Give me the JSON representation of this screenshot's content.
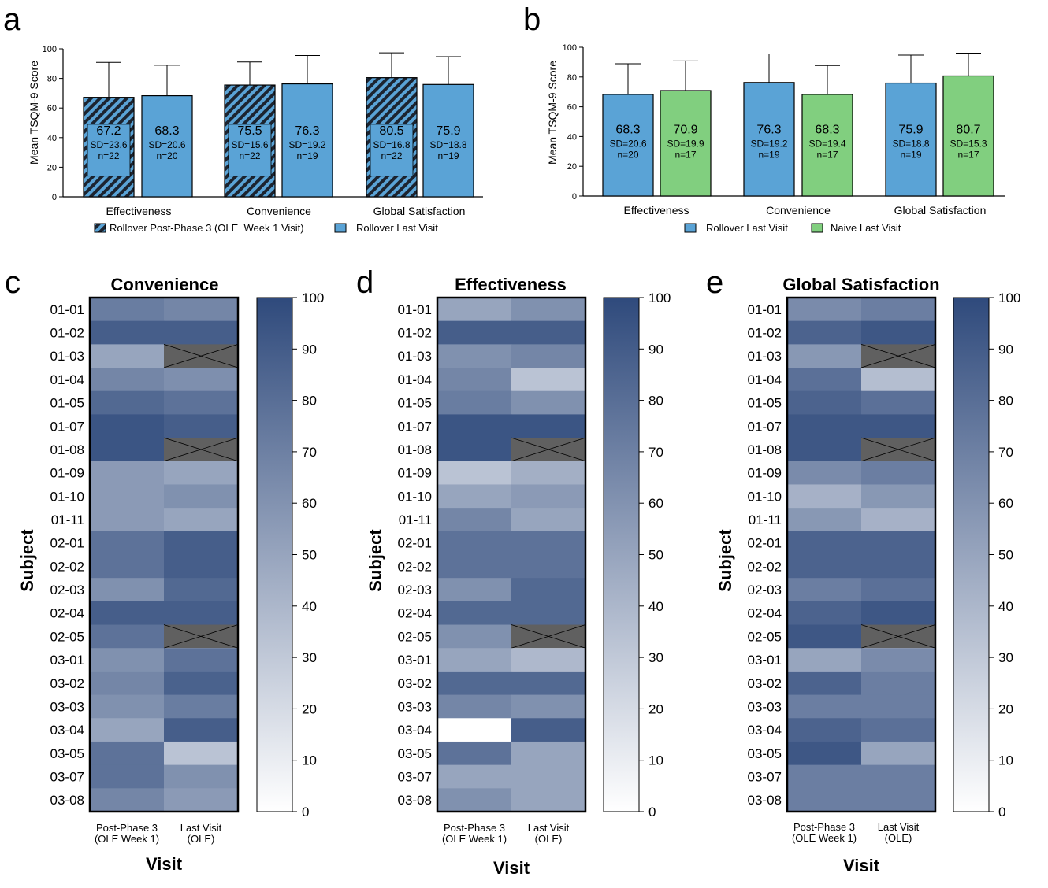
{
  "colors": {
    "rollover_blue": "#5aa3d6",
    "naive_green": "#81cf7f",
    "hatch_dark": "#1c2430",
    "missing_cell": "#606060",
    "scale_high": "#2f4a7c",
    "scale_low": "#ffffff"
  },
  "panel_letters": [
    "a",
    "b",
    "c",
    "d",
    "e"
  ],
  "chart_data": [
    {
      "panel": "a",
      "type": "bar",
      "ylabel": "Mean TSQM-9 Score",
      "ylim": [
        0,
        100
      ],
      "yticks": [
        "0",
        "20",
        "40",
        "60",
        "80",
        "100"
      ],
      "categories": [
        "Effectiveness",
        "Convenience",
        "Global Satisfaction"
      ],
      "series": [
        {
          "name": "Rollover Post-Phase 3 (OLE  Week 1 Visit)",
          "fill": "hatch",
          "values": [
            67.2,
            75.5,
            80.5
          ],
          "sd": [
            23.6,
            15.6,
            16.8
          ],
          "n": [
            22,
            22,
            22
          ],
          "mean_labels": [
            "67.2",
            "75.5",
            "80.5"
          ],
          "sd_labels": [
            "SD=23.6",
            "SD=15.6",
            "SD=16.8"
          ],
          "n_labels": [
            "n=22",
            "n=22",
            "n=22"
          ]
        },
        {
          "name": "Rollover Last Visit",
          "fill": "blue",
          "values": [
            68.3,
            76.3,
            75.9
          ],
          "sd": [
            20.6,
            19.2,
            18.8
          ],
          "n": [
            20,
            19,
            19
          ],
          "mean_labels": [
            "68.3",
            "76.3",
            "75.9"
          ],
          "sd_labels": [
            "SD=20.6",
            "SD=19.2",
            "SD=18.8"
          ],
          "n_labels": [
            "n=20",
            "n=19",
            "n=19"
          ]
        }
      ],
      "legend": "bottom"
    },
    {
      "panel": "b",
      "type": "bar",
      "ylabel": "Mean TSQM-9 Score",
      "ylim": [
        0,
        100
      ],
      "yticks": [
        "0",
        "20",
        "40",
        "60",
        "80",
        "100"
      ],
      "categories": [
        "Effectiveness",
        "Convenience",
        "Global Satisfaction"
      ],
      "series": [
        {
          "name": "Rollover Last Visit",
          "fill": "blue",
          "values": [
            68.3,
            76.3,
            75.9
          ],
          "sd": [
            20.6,
            19.2,
            18.8
          ],
          "n": [
            20,
            19,
            19
          ],
          "mean_labels": [
            "68.3",
            "76.3",
            "75.9"
          ],
          "sd_labels": [
            "SD=20.6",
            "SD=19.2",
            "SD=18.8"
          ],
          "n_labels": [
            "n=20",
            "n=19",
            "n=19"
          ]
        },
        {
          "name": "Naive Last Visit",
          "fill": "green",
          "values": [
            70.9,
            68.3,
            80.7
          ],
          "sd": [
            19.9,
            19.4,
            15.3
          ],
          "n": [
            17,
            17,
            17
          ],
          "mean_labels": [
            "70.9",
            "68.3",
            "80.7"
          ],
          "sd_labels": [
            "SD=19.9",
            "SD=19.4",
            "SD=15.3"
          ],
          "n_labels": [
            "n=17",
            "n=17",
            "n=17"
          ]
        }
      ],
      "legend": "bottom"
    },
    {
      "panel": "c",
      "type": "heatmap",
      "title": "Convenience",
      "ylabel": "Subject",
      "xlabel": "Visit",
      "columns": [
        [
          "Post-Phase 3",
          "(OLE Week 1)"
        ],
        [
          "Last Visit",
          "(OLE)"
        ]
      ],
      "rows": [
        "01-01",
        "01-02",
        "01-03",
        "01-04",
        "01-05",
        "01-07",
        "01-08",
        "01-09",
        "01-10",
        "01-11",
        "02-01",
        "02-02",
        "02-03",
        "02-04",
        "02-05",
        "03-01",
        "03-02",
        "03-03",
        "03-04",
        "03-05",
        "03-07",
        "03-08"
      ],
      "values": [
        [
          72,
          67
        ],
        [
          89,
          89
        ],
        [
          50,
          null
        ],
        [
          67,
          62
        ],
        [
          83,
          78
        ],
        [
          94,
          89
        ],
        [
          94,
          null
        ],
        [
          56,
          50
        ],
        [
          56,
          61
        ],
        [
          56,
          50
        ],
        [
          78,
          89
        ],
        [
          78,
          89
        ],
        [
          61,
          83
        ],
        [
          89,
          89
        ],
        [
          78,
          null
        ],
        [
          61,
          78
        ],
        [
          67,
          87
        ],
        [
          61,
          72
        ],
        [
          50,
          89
        ],
        [
          78,
          33
        ],
        [
          78,
          61
        ],
        [
          67,
          56
        ]
      ],
      "colorbar": {
        "min": 0,
        "max": 100,
        "ticks": [
          "0",
          "10",
          "20",
          "30",
          "40",
          "50",
          "60",
          "70",
          "80",
          "90",
          "100"
        ]
      }
    },
    {
      "panel": "d",
      "type": "heatmap",
      "title": "Effectiveness",
      "ylabel": "Subject",
      "xlabel": "Visit",
      "columns": [
        [
          "Post-Phase 3",
          "(OLE Week 1)"
        ],
        [
          "Last Visit",
          "(OLE)"
        ]
      ],
      "rows": [
        "01-01",
        "01-02",
        "01-03",
        "01-04",
        "01-05",
        "01-07",
        "01-08",
        "01-09",
        "01-10",
        "01-11",
        "02-01",
        "02-02",
        "02-03",
        "02-04",
        "02-05",
        "03-01",
        "03-02",
        "03-03",
        "03-04",
        "03-05",
        "03-07",
        "03-08"
      ],
      "values": [
        [
          50,
          61
        ],
        [
          89,
          89
        ],
        [
          61,
          67
        ],
        [
          67,
          33
        ],
        [
          72,
          61
        ],
        [
          94,
          94
        ],
        [
          94,
          null
        ],
        [
          33,
          44
        ],
        [
          50,
          56
        ],
        [
          67,
          50
        ],
        [
          78,
          78
        ],
        [
          78,
          78
        ],
        [
          61,
          83
        ],
        [
          83,
          83
        ],
        [
          61,
          null
        ],
        [
          50,
          39
        ],
        [
          83,
          83
        ],
        [
          67,
          61
        ],
        [
          0,
          89
        ],
        [
          78,
          50
        ],
        [
          50,
          50
        ],
        [
          61,
          50
        ]
      ],
      "colorbar": {
        "min": 0,
        "max": 100,
        "ticks": [
          "0",
          "10",
          "20",
          "30",
          "40",
          "50",
          "60",
          "70",
          "80",
          "90",
          "100"
        ]
      }
    },
    {
      "panel": "e",
      "type": "heatmap",
      "title": "Global Satisfaction",
      "ylabel": "Subject",
      "xlabel": "Visit",
      "columns": [
        [
          "Post-Phase 3",
          "(OLE Week 1)"
        ],
        [
          "Last Visit",
          "(OLE)"
        ]
      ],
      "rows": [
        "01-01",
        "01-02",
        "01-03",
        "01-04",
        "01-05",
        "01-07",
        "01-08",
        "01-09",
        "01-10",
        "01-11",
        "02-01",
        "02-02",
        "02-03",
        "02-04",
        "02-05",
        "03-01",
        "03-02",
        "03-03",
        "03-04",
        "03-05",
        "03-07",
        "03-08"
      ],
      "values": [
        [
          64,
          71
        ],
        [
          86,
          93
        ],
        [
          57,
          null
        ],
        [
          79,
          36
        ],
        [
          86,
          79
        ],
        [
          93,
          93
        ],
        [
          93,
          null
        ],
        [
          64,
          71
        ],
        [
          43,
          57
        ],
        [
          57,
          43
        ],
        [
          86,
          86
        ],
        [
          86,
          86
        ],
        [
          71,
          79
        ],
        [
          86,
          93
        ],
        [
          93,
          null
        ],
        [
          50,
          64
        ],
        [
          86,
          71
        ],
        [
          71,
          71
        ],
        [
          86,
          79
        ],
        [
          93,
          50
        ],
        [
          71,
          71
        ],
        [
          71,
          71
        ]
      ],
      "colorbar": {
        "min": 0,
        "max": 100,
        "ticks": [
          "0",
          "10",
          "20",
          "30",
          "40",
          "50",
          "60",
          "70",
          "80",
          "90",
          "100"
        ]
      }
    }
  ]
}
